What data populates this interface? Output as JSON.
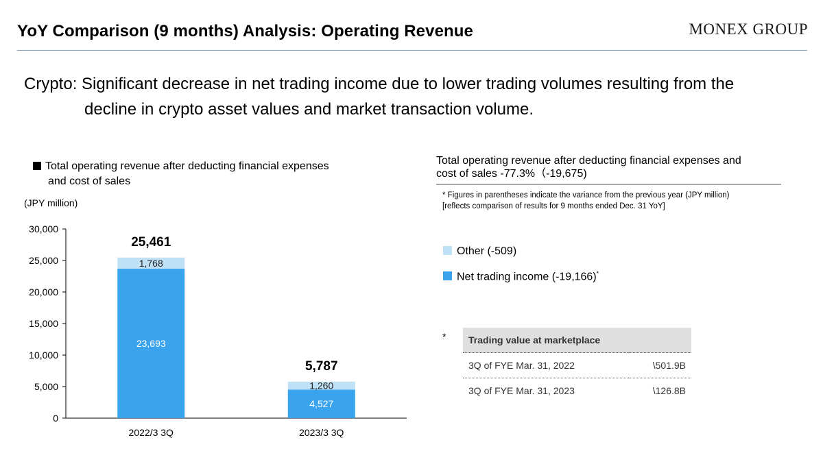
{
  "header": {
    "title": "YoY Comparison (9 months) Analysis: Operating Revenue",
    "brand": "MONEX GROUP"
  },
  "subtitle": {
    "line1": "Crypto: Significant decrease in net trading income due to lower trading volumes resulting from the",
    "line2": "decline in crypto asset values and market transaction volume."
  },
  "chart_data": {
    "type": "bar",
    "stacked": true,
    "title_line1": "Total operating revenue after deducting financial expenses",
    "title_line2": "and cost of sales",
    "unit": "(JPY million)",
    "categories": [
      "2022/3 3Q",
      "2023/3 3Q"
    ],
    "series": [
      {
        "name": "Net trading income",
        "values": [
          23693,
          4527
        ],
        "color": "#3aa3ee"
      },
      {
        "name": "Other",
        "values": [
          1768,
          1260
        ],
        "color": "#bfe0f5"
      }
    ],
    "totals": [
      25461,
      5787
    ],
    "value_labels": {
      "net_trading_income": [
        "23,693",
        "4,527"
      ],
      "other": [
        "1,768",
        "1,260"
      ],
      "totals": [
        "25,461",
        "5,787"
      ]
    },
    "ylim": [
      0,
      30000
    ],
    "yticks": [
      0,
      5000,
      10000,
      15000,
      20000,
      25000,
      30000
    ],
    "ytick_labels": [
      "0",
      "5,000",
      "10,000",
      "15,000",
      "20,000",
      "25,000",
      "30,000"
    ],
    "grid": false
  },
  "summary": {
    "line1": "Total operating revenue after deducting financial expenses and",
    "line2": "cost of sales -77.3%（-19,675)"
  },
  "footnote": {
    "line1": "* Figures in parentheses indicate the variance from the previous year (JPY million)",
    "line2": "[reflects comparison of results for 9 months ended Dec. 31 YoY]"
  },
  "legend": {
    "other": {
      "label": "Other (-509)",
      "color": "#bfe0f5"
    },
    "net_trading": {
      "label": "Net trading income (-19,166)",
      "marker": "*",
      "color": "#3aa3ee"
    }
  },
  "trading_table": {
    "star": "*",
    "header": "Trading value at marketplace",
    "rows": [
      {
        "period": "3Q of FYE Mar. 31, 2022",
        "value": "\\501.9B"
      },
      {
        "period": "3Q of FYE Mar. 31, 2023",
        "value": "\\126.8B"
      }
    ]
  }
}
